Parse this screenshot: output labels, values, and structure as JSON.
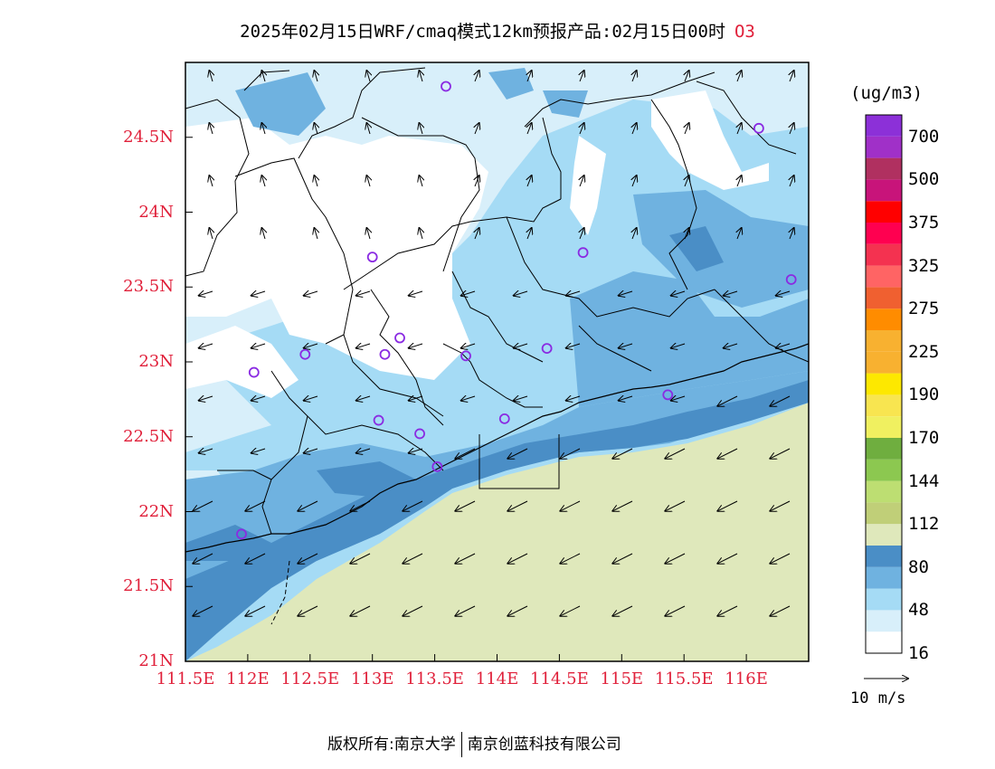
{
  "title": {
    "main": "2025年02月15日WRF/cmaq模式12km预报产品:02月15日00时",
    "variable": "O3"
  },
  "axes": {
    "lat_ticks": [
      {
        "value": 24.5,
        "label": "24.5N"
      },
      {
        "value": 24.0,
        "label": "24N"
      },
      {
        "value": 23.5,
        "label": "23.5N"
      },
      {
        "value": 23.0,
        "label": "23N"
      },
      {
        "value": 22.5,
        "label": "22.5N"
      },
      {
        "value": 22.0,
        "label": "22N"
      },
      {
        "value": 21.5,
        "label": "21.5N"
      },
      {
        "value": 21.0,
        "label": "21N"
      }
    ],
    "lon_ticks": [
      {
        "value": 111.5,
        "label": "111.5E"
      },
      {
        "value": 112.0,
        "label": "112E"
      },
      {
        "value": 112.5,
        "label": "112.5E"
      },
      {
        "value": 113.0,
        "label": "113E"
      },
      {
        "value": 113.5,
        "label": "113.5E"
      },
      {
        "value": 114.0,
        "label": "114E"
      },
      {
        "value": 114.5,
        "label": "114.5E"
      },
      {
        "value": 115.0,
        "label": "115E"
      },
      {
        "value": 115.5,
        "label": "115.5E"
      },
      {
        "value": 116.0,
        "label": "116E"
      }
    ],
    "lon_range": [
      111.5,
      116.5
    ],
    "lat_range": [
      21.0,
      25.0
    ]
  },
  "colorbar": {
    "unit": "(ug/m3)",
    "colors": [
      "#ffffff",
      "#d8effa",
      "#a5dbf5",
      "#6fb2e0",
      "#4a8ec6",
      "#dfe8bb",
      "#c0cf78",
      "#bdde72",
      "#8cc850",
      "#6fae3f",
      "#f0f060",
      "#f8e550",
      "#fde800",
      "#f8b130",
      "#f8b130",
      "#ff8c00",
      "#f06030",
      "#ff6464",
      "#f43250",
      "#ff0050",
      "#ff0000",
      "#c8147a",
      "#b03060",
      "#a030c8",
      "#8c30d8"
    ],
    "labels": [
      {
        "index": 1,
        "text": "16"
      },
      {
        "index": 3,
        "text": "48"
      },
      {
        "index": 5,
        "text": "80"
      },
      {
        "index": 7,
        "text": "112"
      },
      {
        "index": 9,
        "text": "144"
      },
      {
        "index": 11,
        "text": "170"
      },
      {
        "index": 13,
        "text": "190"
      },
      {
        "index": 15,
        "text": "225"
      },
      {
        "index": 17,
        "text": "275"
      },
      {
        "index": 19,
        "text": "325"
      },
      {
        "index": 21,
        "text": "375"
      },
      {
        "index": 23,
        "text": "500"
      },
      {
        "index": 25,
        "text": "700"
      }
    ]
  },
  "wind_reference": {
    "label": "10  m/s"
  },
  "copyright": {
    "left": "版权所有:南京大学",
    "right": "南京创蓝科技有限公司"
  },
  "colors": {
    "axis_label": "#e0203a",
    "station": "#8a2be2",
    "sea": "#dfe8bb"
  },
  "stations": [
    {
      "lon": 113.59,
      "lat": 24.84
    },
    {
      "lon": 116.1,
      "lat": 24.56
    },
    {
      "lon": 113.0,
      "lat": 23.7
    },
    {
      "lon": 114.69,
      "lat": 23.73
    },
    {
      "lon": 116.36,
      "lat": 23.55
    },
    {
      "lon": 113.22,
      "lat": 23.16
    },
    {
      "lon": 113.1,
      "lat": 23.05
    },
    {
      "lon": 112.46,
      "lat": 23.05
    },
    {
      "lon": 113.75,
      "lat": 23.04
    },
    {
      "lon": 114.4,
      "lat": 23.09
    },
    {
      "lon": 112.05,
      "lat": 22.93
    },
    {
      "lon": 115.37,
      "lat": 22.78
    },
    {
      "lon": 113.05,
      "lat": 22.61
    },
    {
      "lon": 114.06,
      "lat": 22.62
    },
    {
      "lon": 113.38,
      "lat": 22.52
    },
    {
      "lon": 113.52,
      "lat": 22.3
    },
    {
      "lon": 111.95,
      "lat": 21.85
    }
  ]
}
